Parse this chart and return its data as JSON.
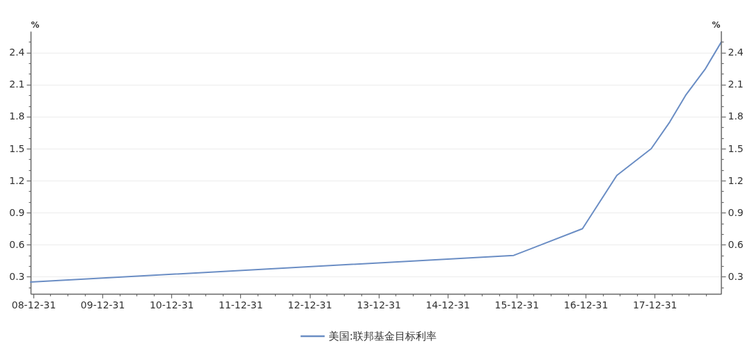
{
  "chart_data": {
    "type": "line",
    "ylabel": "%",
    "y2label": "%",
    "x": [
      "2008-12-16",
      "2015-12-16",
      "2016-12-14",
      "2017-06-14",
      "2017-12-13",
      "2018-03-21",
      "2018-06-13",
      "2018-09-26",
      "2018-12-19"
    ],
    "series": [
      {
        "name": "美国:联邦基金目标利率",
        "color": "#6a8dc4",
        "values": [
          0.25,
          0.5,
          0.75,
          1.25,
          1.5,
          1.75,
          2.0,
          2.25,
          2.5
        ]
      }
    ],
    "xlim": [
      "2008-12-16",
      "2018-12-19"
    ],
    "xticks": [
      {
        "value": "2008-12-31",
        "label": "08-12-31"
      },
      {
        "value": "2009-03-31",
        "label": null
      },
      {
        "value": "2009-06-30",
        "label": null
      },
      {
        "value": "2009-09-30",
        "label": null
      },
      {
        "value": "2009-12-31",
        "label": "09-12-31"
      },
      {
        "value": "2010-03-31",
        "label": null
      },
      {
        "value": "2010-06-30",
        "label": null
      },
      {
        "value": "2010-09-30",
        "label": null
      },
      {
        "value": "2010-12-31",
        "label": "10-12-31"
      },
      {
        "value": "2011-03-31",
        "label": null
      },
      {
        "value": "2011-06-30",
        "label": null
      },
      {
        "value": "2011-09-30",
        "label": null
      },
      {
        "value": "2011-12-31",
        "label": "11-12-31"
      },
      {
        "value": "2012-03-31",
        "label": null
      },
      {
        "value": "2012-06-30",
        "label": null
      },
      {
        "value": "2012-09-30",
        "label": null
      },
      {
        "value": "2012-12-31",
        "label": "12-12-31"
      },
      {
        "value": "2013-03-31",
        "label": null
      },
      {
        "value": "2013-06-30",
        "label": null
      },
      {
        "value": "2013-09-30",
        "label": null
      },
      {
        "value": "2013-12-31",
        "label": "13-12-31"
      },
      {
        "value": "2014-03-31",
        "label": null
      },
      {
        "value": "2014-06-30",
        "label": null
      },
      {
        "value": "2014-09-30",
        "label": null
      },
      {
        "value": "2014-12-31",
        "label": "14-12-31"
      },
      {
        "value": "2015-03-31",
        "label": null
      },
      {
        "value": "2015-06-30",
        "label": null
      },
      {
        "value": "2015-09-30",
        "label": null
      },
      {
        "value": "2015-12-31",
        "label": "15-12-31"
      },
      {
        "value": "2016-03-31",
        "label": null
      },
      {
        "value": "2016-06-30",
        "label": null
      },
      {
        "value": "2016-09-30",
        "label": null
      },
      {
        "value": "2016-12-31",
        "label": "16-12-31"
      },
      {
        "value": "2017-03-31",
        "label": null
      },
      {
        "value": "2017-06-30",
        "label": null
      },
      {
        "value": "2017-09-30",
        "label": null
      },
      {
        "value": "2017-12-31",
        "label": "17-12-31"
      },
      {
        "value": "2018-03-31",
        "label": null
      },
      {
        "value": "2018-06-30",
        "label": null
      },
      {
        "value": "2018-09-30",
        "label": null
      }
    ],
    "ylim": [
      0.14,
      2.6
    ],
    "yticks": [
      {
        "value": 0.2,
        "label": null
      },
      0.3,
      {
        "value": 0.4,
        "label": null
      },
      {
        "value": 0.5,
        "label": null
      },
      0.6,
      {
        "value": 0.7,
        "label": null
      },
      {
        "value": 0.8,
        "label": null
      },
      0.9,
      {
        "value": 1.0,
        "label": null
      },
      {
        "value": 1.1,
        "label": null
      },
      1.2,
      {
        "value": 1.3,
        "label": null
      },
      {
        "value": 1.4,
        "label": null
      },
      1.5,
      {
        "value": 1.6,
        "label": null
      },
      {
        "value": 1.7,
        "label": null
      },
      1.8,
      {
        "value": 1.9,
        "label": null
      },
      {
        "value": 2.0,
        "label": null
      },
      2.1,
      {
        "value": 2.2,
        "label": null
      },
      {
        "value": 2.3,
        "label": null
      },
      2.4,
      {
        "value": 2.5,
        "label": null
      }
    ],
    "y2lim": [
      0.14,
      2.6
    ],
    "y2ticks": [
      {
        "value": 0.2,
        "label": null
      },
      0.3,
      {
        "value": 0.4,
        "label": null
      },
      {
        "value": 0.5,
        "label": null
      },
      0.6,
      {
        "value": 0.7,
        "label": null
      },
      {
        "value": 0.8,
        "label": null
      },
      0.9,
      {
        "value": 1.0,
        "label": null
      },
      {
        "value": 1.1,
        "label": null
      },
      1.2,
      {
        "value": 1.3,
        "label": null
      },
      {
        "value": 1.4,
        "label": null
      },
      1.5,
      {
        "value": 1.6,
        "label": null
      },
      {
        "value": 1.7,
        "label": null
      },
      1.8,
      {
        "value": 1.9,
        "label": null
      },
      {
        "value": 2.0,
        "label": null
      },
      2.1,
      {
        "value": 2.2,
        "label": null
      },
      {
        "value": 2.3,
        "label": null
      },
      2.4,
      {
        "value": 2.5,
        "label": null
      }
    ],
    "grid": "y",
    "legend": "bottom"
  }
}
